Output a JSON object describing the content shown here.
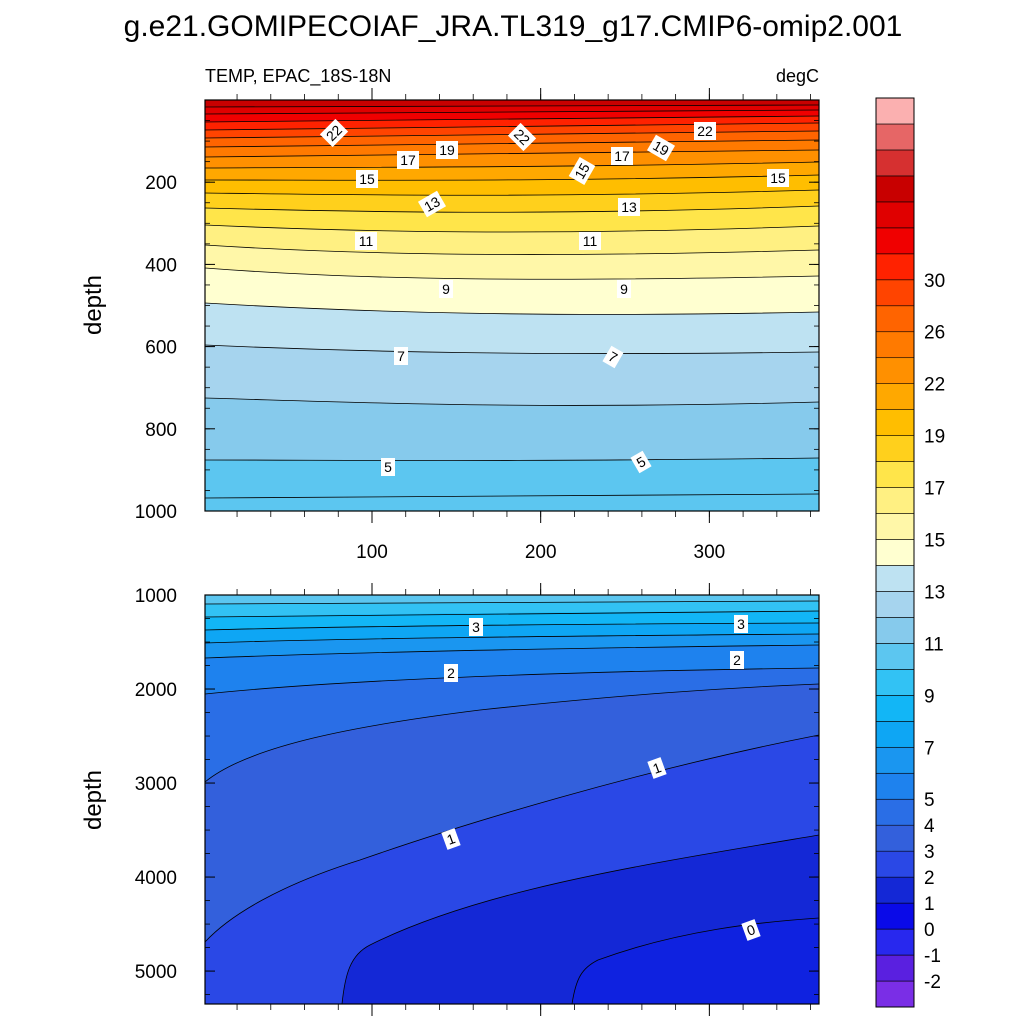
{
  "chart_data": {
    "type": "contour",
    "title": "g.e21.GOMIPECOIAF_JRA.TL319_g17.CMIP6-omip2.001",
    "subtitle_left": "TEMP, EPAC_18S-18N",
    "subtitle_right": "degC",
    "x_range": [
      1,
      365
    ],
    "x_ticks": [
      "100",
      "200",
      "300"
    ],
    "x_tick_values": [
      100,
      200,
      300
    ],
    "colorbar": {
      "levels": [
        "-2",
        "-1",
        "0",
        "1",
        "2",
        "3",
        "4",
        "5",
        "6",
        "7",
        "8",
        "9",
        "10",
        "11",
        "12",
        "13",
        "14",
        "15",
        "16",
        "17",
        "18",
        "19",
        "20",
        "21",
        "22",
        "24",
        "26",
        "28",
        "30",
        "32"
      ],
      "labels": [
        "-2",
        "-1",
        "0",
        "1",
        "2",
        "3",
        "4",
        "5",
        "7",
        "9",
        "11",
        "13",
        "15",
        "17",
        "19",
        "22",
        "26",
        "30"
      ],
      "colors": [
        "#7a2ee6",
        "#5a20e0",
        "#2828ee",
        "#0a0ae8",
        "#1428d6",
        "#2a48e6",
        "#3360dc",
        "#2a6ee6",
        "#1e82ee",
        "#1a96f0",
        "#0ea6f4",
        "#12b6f6",
        "#32c2f4",
        "#5cc6f0",
        "#86caec",
        "#a6d4ee",
        "#bee2f2",
        "#ffffd0",
        "#fff7a8",
        "#fff082",
        "#ffe54a",
        "#ffd01c",
        "#ffbe00",
        "#ffa800",
        "#ff9000",
        "#ff7a00",
        "#ff6400",
        "#ff4400",
        "#ff2200",
        "#f00000",
        "#e00000",
        "#c80000",
        "#d63030",
        "#e66666",
        "#fbb0b0"
      ]
    },
    "panels": [
      {
        "name": "upper",
        "ylabel": "depth",
        "y_range": [
          0,
          1000
        ],
        "y_ticks": [
          "200",
          "400",
          "600",
          "800",
          "1000"
        ],
        "y_tick_values": [
          200,
          400,
          600,
          800,
          1000
        ],
        "contour_labels": [
          "22",
          "22",
          "22",
          "19",
          "19",
          "17",
          "17",
          "15",
          "15",
          "15",
          "13",
          "13",
          "11",
          "11",
          "9",
          "9",
          "7",
          "7",
          "5",
          "5"
        ]
      },
      {
        "name": "lower",
        "ylabel": "depth",
        "y_range": [
          1000,
          5350
        ],
        "y_ticks": [
          "1000",
          "2000",
          "3000",
          "4000",
          "5000"
        ],
        "y_tick_values": [
          1000,
          2000,
          3000,
          4000,
          5000
        ],
        "contour_labels": [
          "3",
          "3",
          "2",
          "2",
          "1",
          "1",
          "0"
        ]
      }
    ]
  }
}
